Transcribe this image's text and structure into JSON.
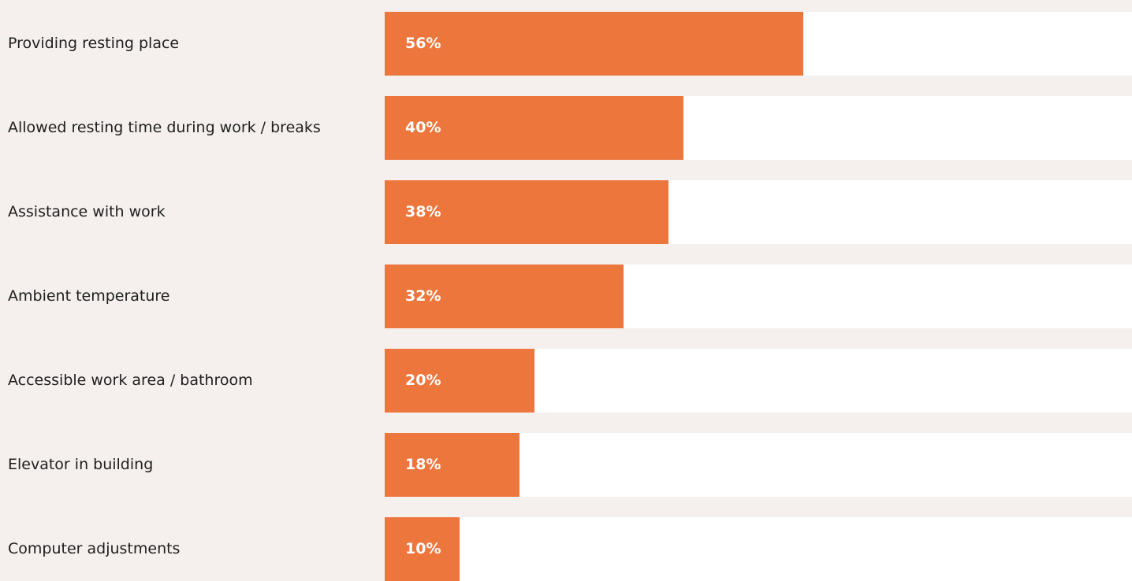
{
  "chart_data": {
    "type": "bar",
    "orientation": "horizontal",
    "categories": [
      "Providing resting place",
      "Allowed resting time during work / breaks",
      "Assistance with work",
      "Ambient temperature",
      "Accessible work area / bathroom",
      "Elevator in building",
      "Computer adjustments"
    ],
    "values": [
      56,
      40,
      38,
      32,
      20,
      18,
      10
    ],
    "value_labels": [
      "56%",
      "40%",
      "38%",
      "32%",
      "20%",
      "18%",
      "10%"
    ],
    "xlim": [
      0,
      100
    ],
    "grid": false,
    "colors": {
      "bar": "#ed763d",
      "track": "#ffffff",
      "background": "#f5f0ed"
    }
  }
}
